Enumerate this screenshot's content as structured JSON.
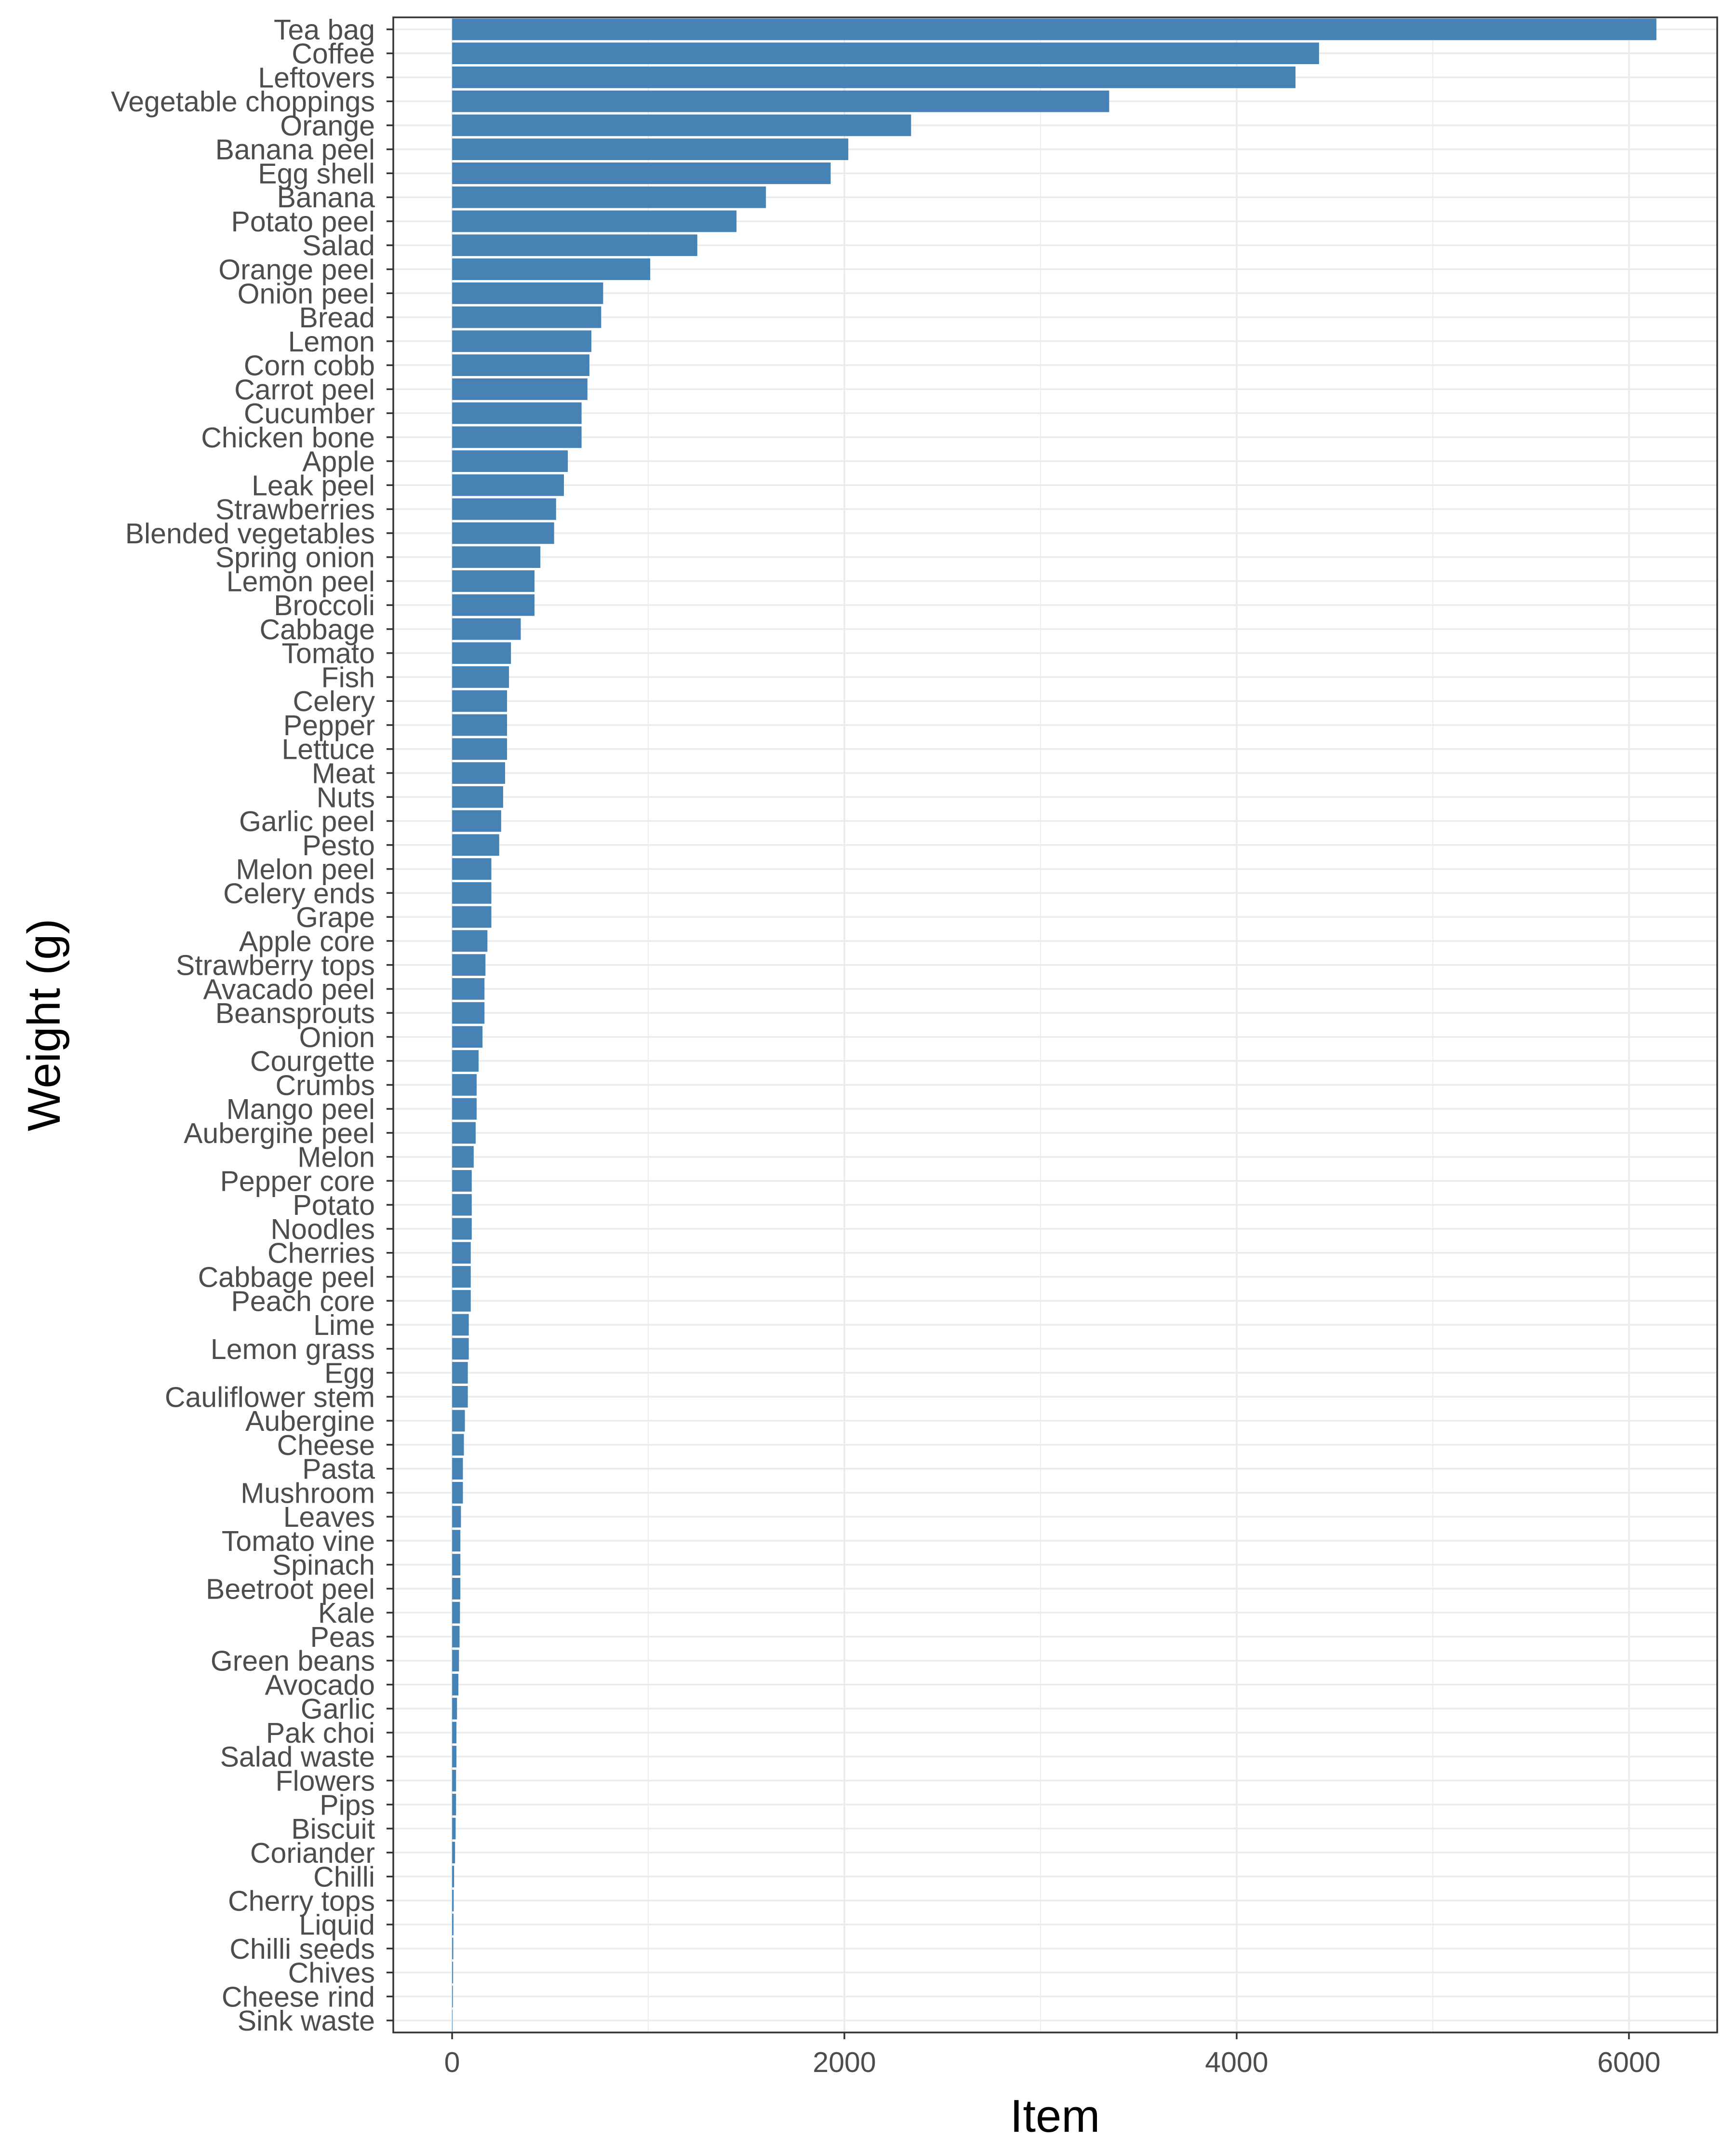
{
  "chart_data": {
    "type": "bar",
    "orientation": "horizontal",
    "xlabel": "Item",
    "ylabel": "Weight (g)",
    "xlim": [
      -300,
      6450
    ],
    "xticks": [
      0,
      2000,
      4000,
      6000
    ],
    "grid": true,
    "bar_color": "#4682B4",
    "categories": [
      "Tea bag",
      "Coffee",
      "Leftovers",
      "Vegetable choppings",
      "Orange",
      "Banana peel",
      "Egg shell",
      "Banana",
      "Potato peel",
      "Salad",
      "Orange peel",
      "Onion peel",
      "Bread",
      "Lemon",
      "Corn cobb",
      "Carrot peel",
      "Cucumber",
      "Chicken bone",
      "Apple",
      "Leak peel",
      "Strawberries",
      "Blended vegetables",
      "Spring onion",
      "Lemon peel",
      "Broccoli",
      "Cabbage",
      "Tomato",
      "Fish",
      "Celery",
      "Pepper",
      "Lettuce",
      "Meat",
      "Nuts",
      "Garlic peel",
      "Pesto",
      "Melon peel",
      "Celery ends",
      "Grape",
      "Apple core",
      "Strawberry tops",
      "Avacado peel",
      "Beansprouts",
      "Onion",
      "Courgette",
      "Crumbs",
      "Mango peel",
      "Aubergine peel",
      "Melon",
      "Pepper core",
      "Potato",
      "Noodles",
      "Cherries",
      "Cabbage peel",
      "Peach core",
      "Lime",
      "Lemon grass",
      "Egg",
      "Cauliflower stem",
      "Aubergine",
      "Cheese",
      "Pasta",
      "Mushroom",
      "Leaves",
      "Tomato vine",
      "Spinach",
      "Beetroot peel",
      "Kale",
      "Peas",
      "Green beans",
      "Avocado",
      "Garlic",
      "Pak choi",
      "Salad waste",
      "Flowers",
      "Pips",
      "Biscuit",
      "Coriander",
      "Chilli",
      "Cherry tops",
      "Liquid",
      "Chilli seeds",
      "Chives",
      "Cheese rind",
      "Sink waste"
    ],
    "values": [
      6140,
      4420,
      4300,
      3350,
      2340,
      2020,
      1930,
      1600,
      1450,
      1250,
      1010,
      770,
      760,
      710,
      700,
      690,
      660,
      660,
      590,
      570,
      530,
      520,
      450,
      420,
      420,
      350,
      300,
      290,
      280,
      280,
      280,
      270,
      260,
      250,
      240,
      200,
      200,
      200,
      180,
      170,
      165,
      165,
      155,
      135,
      125,
      125,
      120,
      110,
      100,
      100,
      100,
      95,
      95,
      95,
      85,
      85,
      80,
      80,
      65,
      60,
      55,
      55,
      45,
      42,
      42,
      42,
      40,
      38,
      35,
      32,
      25,
      22,
      22,
      20,
      20,
      18,
      15,
      10,
      8,
      7,
      6,
      5,
      4,
      2
    ]
  }
}
